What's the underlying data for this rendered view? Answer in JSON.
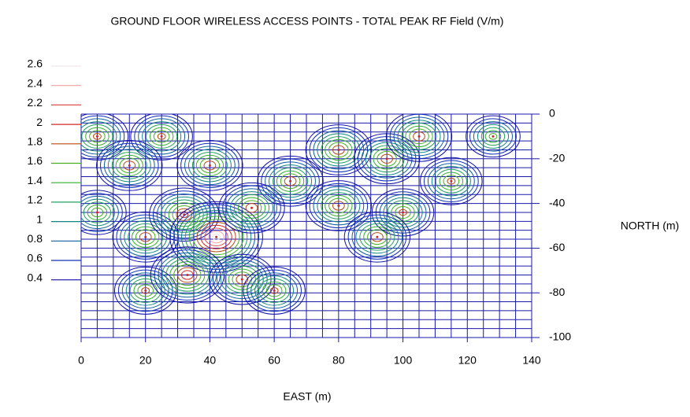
{
  "chart_data": {
    "type": "contour",
    "title": "GROUND FLOOR WIRELESS ACCESS POINTS - TOTAL PEAK RF Field (V/m)",
    "xlabel": "EAST (m)",
    "ylabel": "NORTH (m)",
    "xlim": [
      0,
      140
    ],
    "ylim": [
      -100,
      0
    ],
    "xticks": [
      0,
      20,
      40,
      60,
      80,
      100,
      120,
      140
    ],
    "yticks": [
      0,
      -20,
      -40,
      -60,
      -80,
      -100
    ],
    "grid": true,
    "grid_color": "#1a1aa8",
    "levels": [
      {
        "value": 2.6,
        "color": "#f4e6e6"
      },
      {
        "value": 2.4,
        "color": "#f0a0a0"
      },
      {
        "value": 2.2,
        "color": "#e05050"
      },
      {
        "value": 2,
        "color": "#d02828"
      },
      {
        "value": 1.8,
        "color": "#b84a10"
      },
      {
        "value": 1.6,
        "color": "#48b020"
      },
      {
        "value": 1.4,
        "color": "#30b030"
      },
      {
        "value": 1.2,
        "color": "#20a060"
      },
      {
        "value": 1,
        "color": "#108880"
      },
      {
        "value": 0.8,
        "color": "#1060a0"
      },
      {
        "value": 0.6,
        "color": "#1030b8"
      },
      {
        "value": 0.4,
        "color": "#1010a8"
      }
    ],
    "peaks": [
      {
        "x": 5,
        "y": -10,
        "value": 1.8
      },
      {
        "x": 25,
        "y": -10,
        "value": 1.8
      },
      {
        "x": 15,
        "y": -23,
        "value": 1.9
      },
      {
        "x": 40,
        "y": -23,
        "value": 1.9
      },
      {
        "x": 65,
        "y": -30,
        "value": 1.9
      },
      {
        "x": 80,
        "y": -16,
        "value": 1.9
      },
      {
        "x": 95,
        "y": -20,
        "value": 1.9
      },
      {
        "x": 105,
        "y": -10,
        "value": 1.9
      },
      {
        "x": 128,
        "y": -10,
        "value": 1.6
      },
      {
        "x": 115,
        "y": -30,
        "value": 1.8
      },
      {
        "x": 5,
        "y": -44,
        "value": 1.7
      },
      {
        "x": 20,
        "y": -55,
        "value": 1.9
      },
      {
        "x": 32,
        "y": -45,
        "value": 2
      },
      {
        "x": 42,
        "y": -55,
        "value": 2.6
      },
      {
        "x": 53,
        "y": -42,
        "value": 1.9
      },
      {
        "x": 80,
        "y": -41,
        "value": 1.9
      },
      {
        "x": 100,
        "y": -44,
        "value": 1.8
      },
      {
        "x": 92,
        "y": -55,
        "value": 1.9
      },
      {
        "x": 20,
        "y": -79,
        "value": 1.8
      },
      {
        "x": 33,
        "y": -72,
        "value": 2.1
      },
      {
        "x": 50,
        "y": -74,
        "value": 1.9
      },
      {
        "x": 60,
        "y": -79,
        "value": 1.8
      }
    ]
  }
}
